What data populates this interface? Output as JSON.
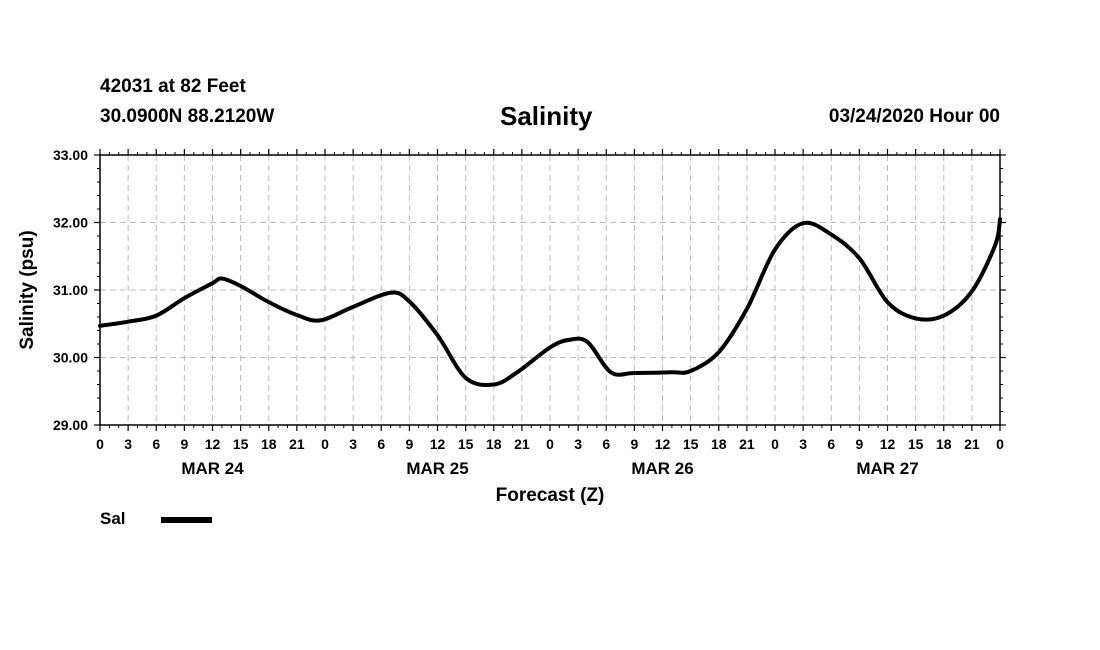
{
  "header": {
    "station": "42031 at 82 Feet",
    "coords": "30.0900N 88.2120W",
    "title": "Salinity",
    "date": "03/24/2020 Hour 00"
  },
  "colors": {
    "line": "#000000",
    "grid": "#bbbbbb",
    "background": "#ffffff"
  },
  "legend": {
    "label": "Sal"
  },
  "chart_data": {
    "type": "line",
    "title": "Salinity",
    "xlabel": "Forecast (Z)",
    "ylabel": "Salinity (psu)",
    "ylim": [
      29.0,
      33.0
    ],
    "xlim": [
      0,
      96
    ],
    "y_ticks": [
      "29.00",
      "30.00",
      "31.00",
      "32.00",
      "33.00"
    ],
    "x_ticks": [
      "0",
      "3",
      "6",
      "9",
      "12",
      "15",
      "18",
      "21",
      "0",
      "3",
      "6",
      "9",
      "12",
      "15",
      "18",
      "21",
      "0",
      "3",
      "6",
      "9",
      "12",
      "15",
      "18",
      "21",
      "0",
      "3",
      "6",
      "9",
      "12",
      "15",
      "18",
      "21",
      "0"
    ],
    "day_labels": [
      "MAR 24",
      "MAR 25",
      "MAR 26",
      "MAR 27"
    ],
    "grid": true,
    "legend_position": "bottom-left",
    "series": [
      {
        "name": "Sal",
        "x": [
          0,
          3,
          6,
          9,
          12,
          13,
          15,
          18,
          21,
          23.5,
          27,
          31,
          33,
          36,
          39,
          42,
          44.5,
          48,
          50,
          52,
          54.5,
          57,
          61,
          63,
          66,
          69,
          72,
          75,
          78,
          81,
          84,
          87,
          90,
          93,
          95.5,
          96
        ],
        "y": [
          30.47,
          30.53,
          30.62,
          30.88,
          31.1,
          31.17,
          31.06,
          30.82,
          30.63,
          30.55,
          30.75,
          30.96,
          30.83,
          30.33,
          29.7,
          29.6,
          29.78,
          30.15,
          30.26,
          30.23,
          29.78,
          29.77,
          29.78,
          29.8,
          30.08,
          30.72,
          31.6,
          31.99,
          31.82,
          31.47,
          30.82,
          30.58,
          30.62,
          30.98,
          31.67,
          32.05
        ]
      }
    ]
  }
}
